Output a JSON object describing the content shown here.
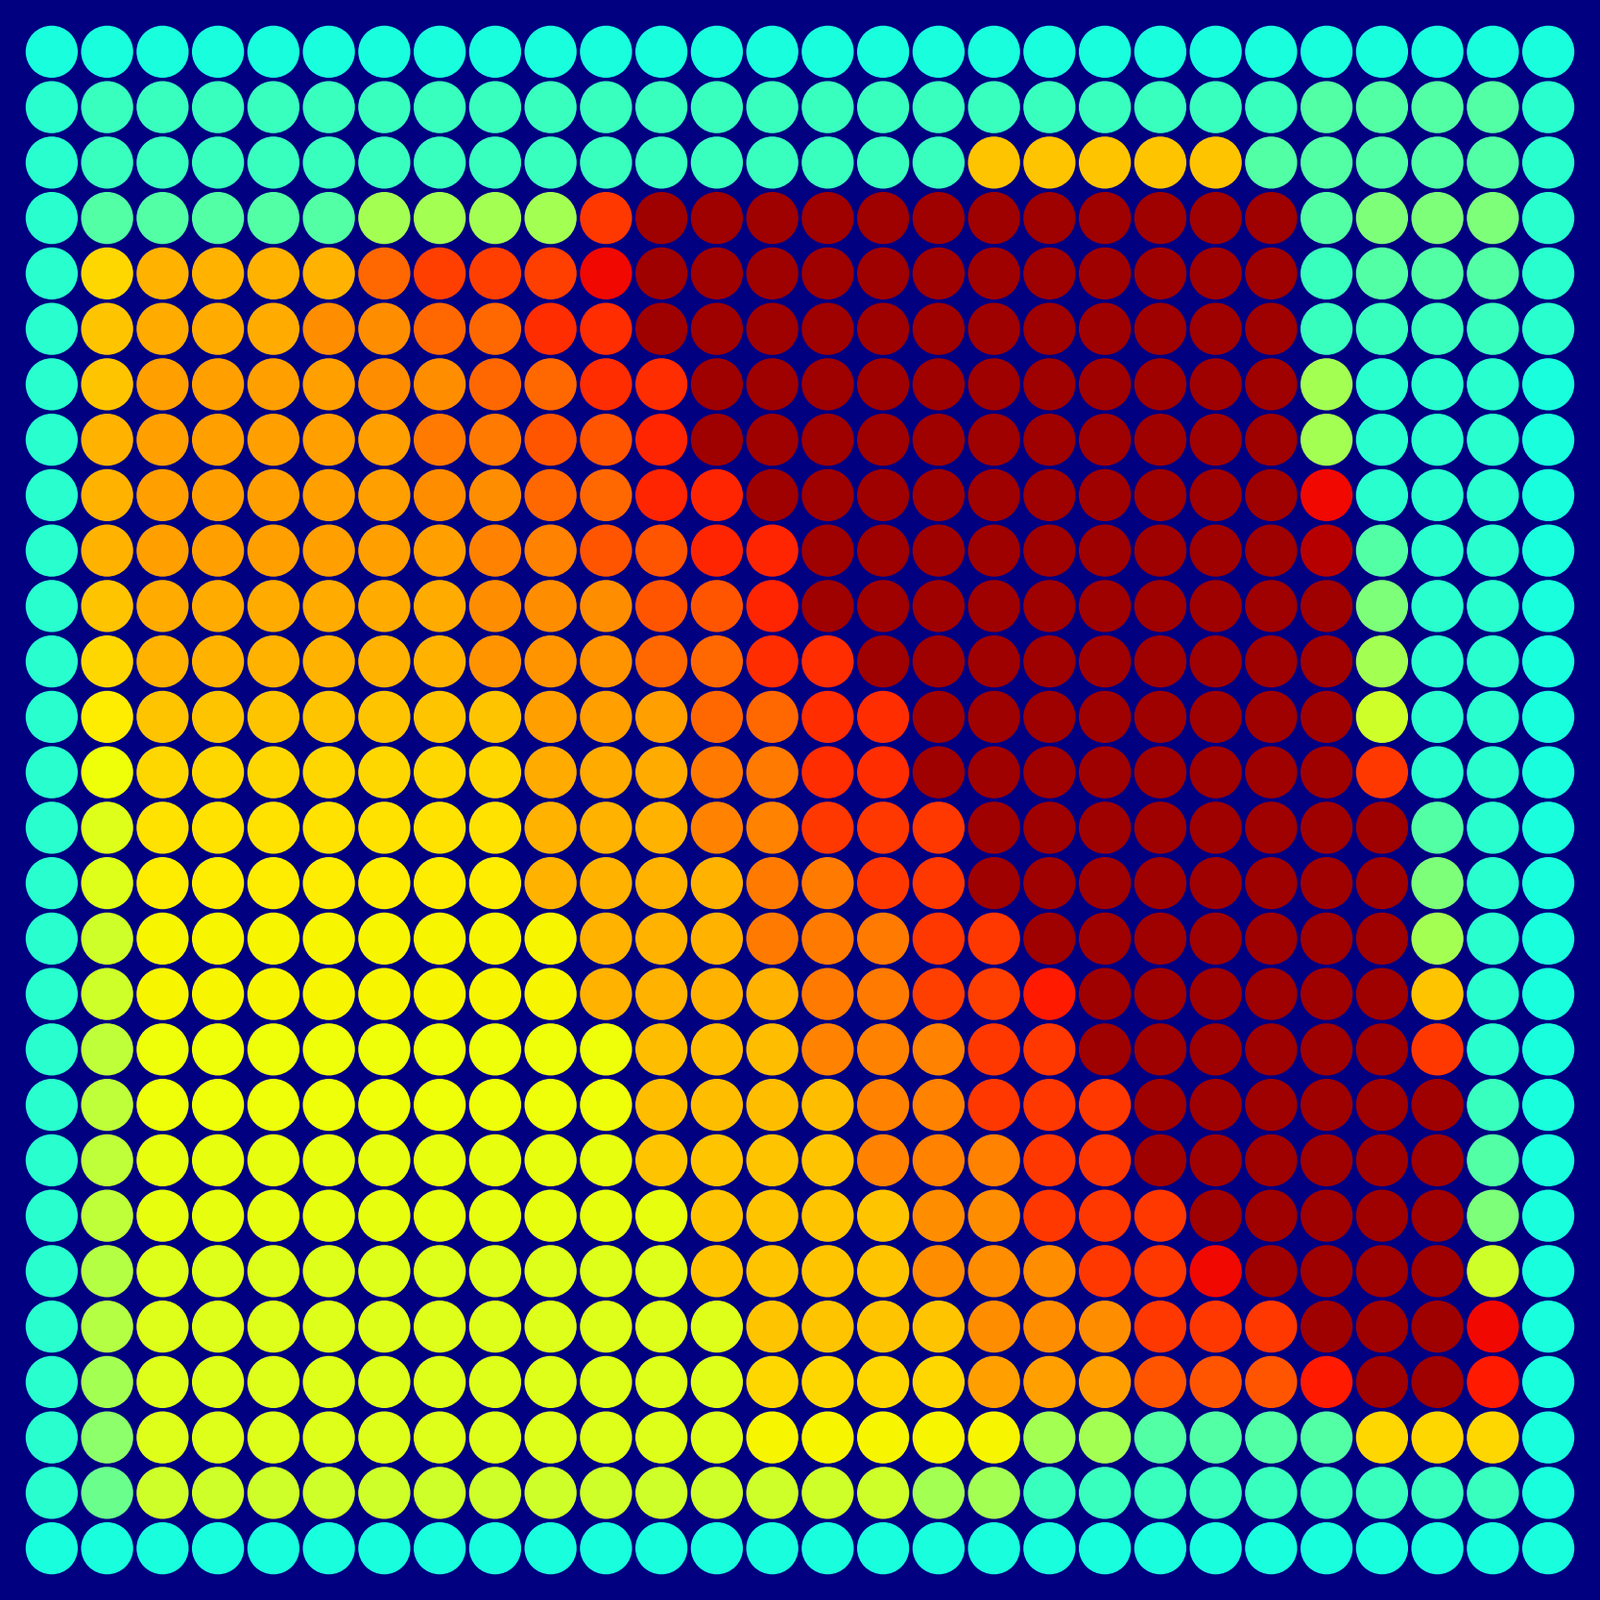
{
  "chart_data": {
    "type": "heatmap",
    "color": "jet",
    "color_range": [
      0,
      100
    ],
    "tick_labels": false,
    "cells": [
      [
        38,
        38,
        38,
        38,
        38,
        38,
        38,
        38,
        38,
        38,
        38,
        38,
        38,
        38,
        38,
        38,
        38,
        38,
        38,
        38,
        38,
        38,
        38,
        38,
        38,
        38,
        38,
        38
      ],
      [
        40,
        42,
        42,
        42,
        42,
        42,
        42,
        42,
        42,
        42,
        42,
        42,
        42,
        42,
        42,
        42,
        42,
        42,
        42,
        42,
        42,
        42,
        42,
        45,
        45,
        45,
        45,
        40
      ],
      [
        40,
        42,
        42,
        42,
        42,
        42,
        42,
        42,
        42,
        42,
        42,
        42,
        42,
        42,
        42,
        42,
        42,
        70,
        70,
        70,
        70,
        70,
        45,
        45,
        45,
        45,
        45,
        40
      ],
      [
        40,
        45,
        45,
        45,
        45,
        45,
        55,
        55,
        55,
        55,
        85,
        97,
        97,
        97,
        97,
        97,
        97,
        97,
        97,
        97,
        97,
        97,
        97,
        45,
        50,
        50,
        50,
        40
      ],
      [
        40,
        68,
        72,
        72,
        72,
        72,
        80,
        84,
        84,
        84,
        90,
        97,
        97,
        97,
        97,
        97,
        97,
        97,
        97,
        97,
        97,
        97,
        97,
        42,
        45,
        45,
        45,
        40
      ],
      [
        40,
        70,
        73,
        73,
        73,
        76,
        76,
        80,
        80,
        86,
        86,
        97,
        97,
        97,
        97,
        97,
        97,
        97,
        97,
        97,
        97,
        97,
        97,
        42,
        42,
        42,
        42,
        40
      ],
      [
        40,
        70,
        74,
        74,
        74,
        74,
        76,
        76,
        80,
        80,
        86,
        86,
        97,
        97,
        97,
        97,
        97,
        97,
        97,
        97,
        97,
        97,
        97,
        55,
        40,
        40,
        40,
        38
      ],
      [
        40,
        72,
        74,
        74,
        74,
        74,
        74,
        78,
        78,
        82,
        82,
        87,
        97,
        97,
        97,
        97,
        97,
        97,
        97,
        97,
        97,
        97,
        97,
        55,
        40,
        40,
        40,
        38
      ],
      [
        40,
        72,
        74,
        74,
        74,
        74,
        74,
        76,
        76,
        80,
        80,
        87,
        87,
        97,
        97,
        97,
        97,
        97,
        97,
        97,
        97,
        97,
        97,
        90,
        40,
        40,
        40,
        38
      ],
      [
        40,
        72,
        74,
        74,
        74,
        74,
        74,
        74,
        77,
        77,
        82,
        82,
        87,
        87,
        97,
        97,
        97,
        97,
        97,
        97,
        97,
        97,
        97,
        95,
        45,
        40,
        40,
        38
      ],
      [
        40,
        70,
        73,
        73,
        73,
        73,
        73,
        73,
        76,
        76,
        76,
        82,
        82,
        87,
        97,
        97,
        97,
        97,
        97,
        97,
        97,
        97,
        97,
        97,
        50,
        40,
        40,
        38
      ],
      [
        40,
        68,
        72,
        72,
        72,
        72,
        72,
        72,
        75,
        75,
        75,
        80,
        80,
        86,
        86,
        97,
        97,
        97,
        97,
        97,
        97,
        97,
        97,
        97,
        55,
        40,
        40,
        38
      ],
      [
        40,
        66,
        70,
        70,
        70,
        70,
        70,
        70,
        70,
        74,
        74,
        74,
        80,
        80,
        86,
        86,
        97,
        97,
        97,
        97,
        97,
        97,
        97,
        97,
        60,
        40,
        40,
        38
      ],
      [
        40,
        64,
        68,
        68,
        68,
        68,
        68,
        68,
        68,
        73,
        73,
        73,
        78,
        78,
        86,
        86,
        97,
        97,
        97,
        97,
        97,
        97,
        97,
        97,
        85,
        40,
        40,
        38
      ],
      [
        40,
        62,
        67,
        67,
        67,
        67,
        67,
        67,
        67,
        72,
        72,
        72,
        77,
        77,
        85,
        85,
        85,
        97,
        97,
        97,
        97,
        97,
        97,
        97,
        97,
        45,
        40,
        38
      ],
      [
        40,
        62,
        66,
        66,
        66,
        66,
        66,
        66,
        66,
        72,
        72,
        72,
        72,
        78,
        78,
        85,
        85,
        97,
        97,
        97,
        97,
        97,
        97,
        97,
        97,
        50,
        40,
        38
      ],
      [
        40,
        60,
        65,
        65,
        65,
        65,
        65,
        65,
        65,
        65,
        72,
        72,
        72,
        78,
        78,
        78,
        85,
        85,
        97,
        97,
        97,
        97,
        97,
        97,
        97,
        55,
        40,
        38
      ],
      [
        40,
        60,
        65,
        65,
        65,
        65,
        65,
        65,
        65,
        65,
        72,
        72,
        72,
        72,
        78,
        78,
        84,
        84,
        88,
        97,
        97,
        97,
        97,
        97,
        97,
        70,
        40,
        38
      ],
      [
        40,
        58,
        64,
        64,
        64,
        64,
        64,
        64,
        64,
        64,
        64,
        71,
        71,
        71,
        77,
        77,
        77,
        85,
        85,
        97,
        97,
        97,
        97,
        97,
        97,
        85,
        40,
        38
      ],
      [
        40,
        58,
        64,
        64,
        64,
        64,
        64,
        64,
        64,
        64,
        64,
        71,
        71,
        71,
        71,
        77,
        77,
        85,
        85,
        85,
        97,
        97,
        97,
        97,
        97,
        97,
        42,
        38
      ],
      [
        40,
        58,
        63,
        63,
        63,
        63,
        63,
        63,
        63,
        63,
        63,
        70,
        70,
        70,
        70,
        77,
        77,
        77,
        85,
        85,
        97,
        97,
        97,
        97,
        97,
        97,
        45,
        38
      ],
      [
        40,
        58,
        63,
        63,
        63,
        63,
        63,
        63,
        63,
        63,
        63,
        63,
        70,
        70,
        70,
        70,
        76,
        76,
        85,
        85,
        85,
        97,
        97,
        97,
        97,
        97,
        50,
        38
      ],
      [
        40,
        57,
        62,
        62,
        62,
        62,
        62,
        62,
        62,
        62,
        62,
        62,
        70,
        70,
        70,
        70,
        76,
        76,
        76,
        85,
        85,
        90,
        97,
        97,
        97,
        97,
        60,
        38
      ],
      [
        40,
        57,
        62,
        62,
        62,
        62,
        62,
        62,
        62,
        62,
        62,
        62,
        62,
        70,
        70,
        70,
        70,
        76,
        76,
        76,
        85,
        85,
        85,
        97,
        97,
        97,
        90,
        38
      ],
      [
        40,
        55,
        62,
        62,
        62,
        62,
        62,
        62,
        62,
        62,
        62,
        62,
        62,
        68,
        68,
        68,
        68,
        74,
        74,
        74,
        82,
        82,
        82,
        88,
        97,
        97,
        88,
        38
      ],
      [
        40,
        52,
        62,
        62,
        62,
        62,
        62,
        62,
        62,
        62,
        62,
        62,
        62,
        65,
        65,
        65,
        65,
        65,
        55,
        55,
        45,
        45,
        45,
        45,
        68,
        68,
        68,
        38
      ],
      [
        40,
        48,
        60,
        60,
        60,
        60,
        60,
        60,
        60,
        60,
        60,
        60,
        60,
        60,
        60,
        60,
        55,
        55,
        42,
        42,
        42,
        42,
        42,
        42,
        42,
        42,
        42,
        38
      ],
      [
        38,
        38,
        38,
        38,
        38,
        38,
        38,
        38,
        38,
        38,
        38,
        38,
        38,
        38,
        38,
        38,
        38,
        38,
        38,
        38,
        38,
        38,
        38,
        38,
        38,
        38,
        38,
        38
      ]
    ]
  }
}
